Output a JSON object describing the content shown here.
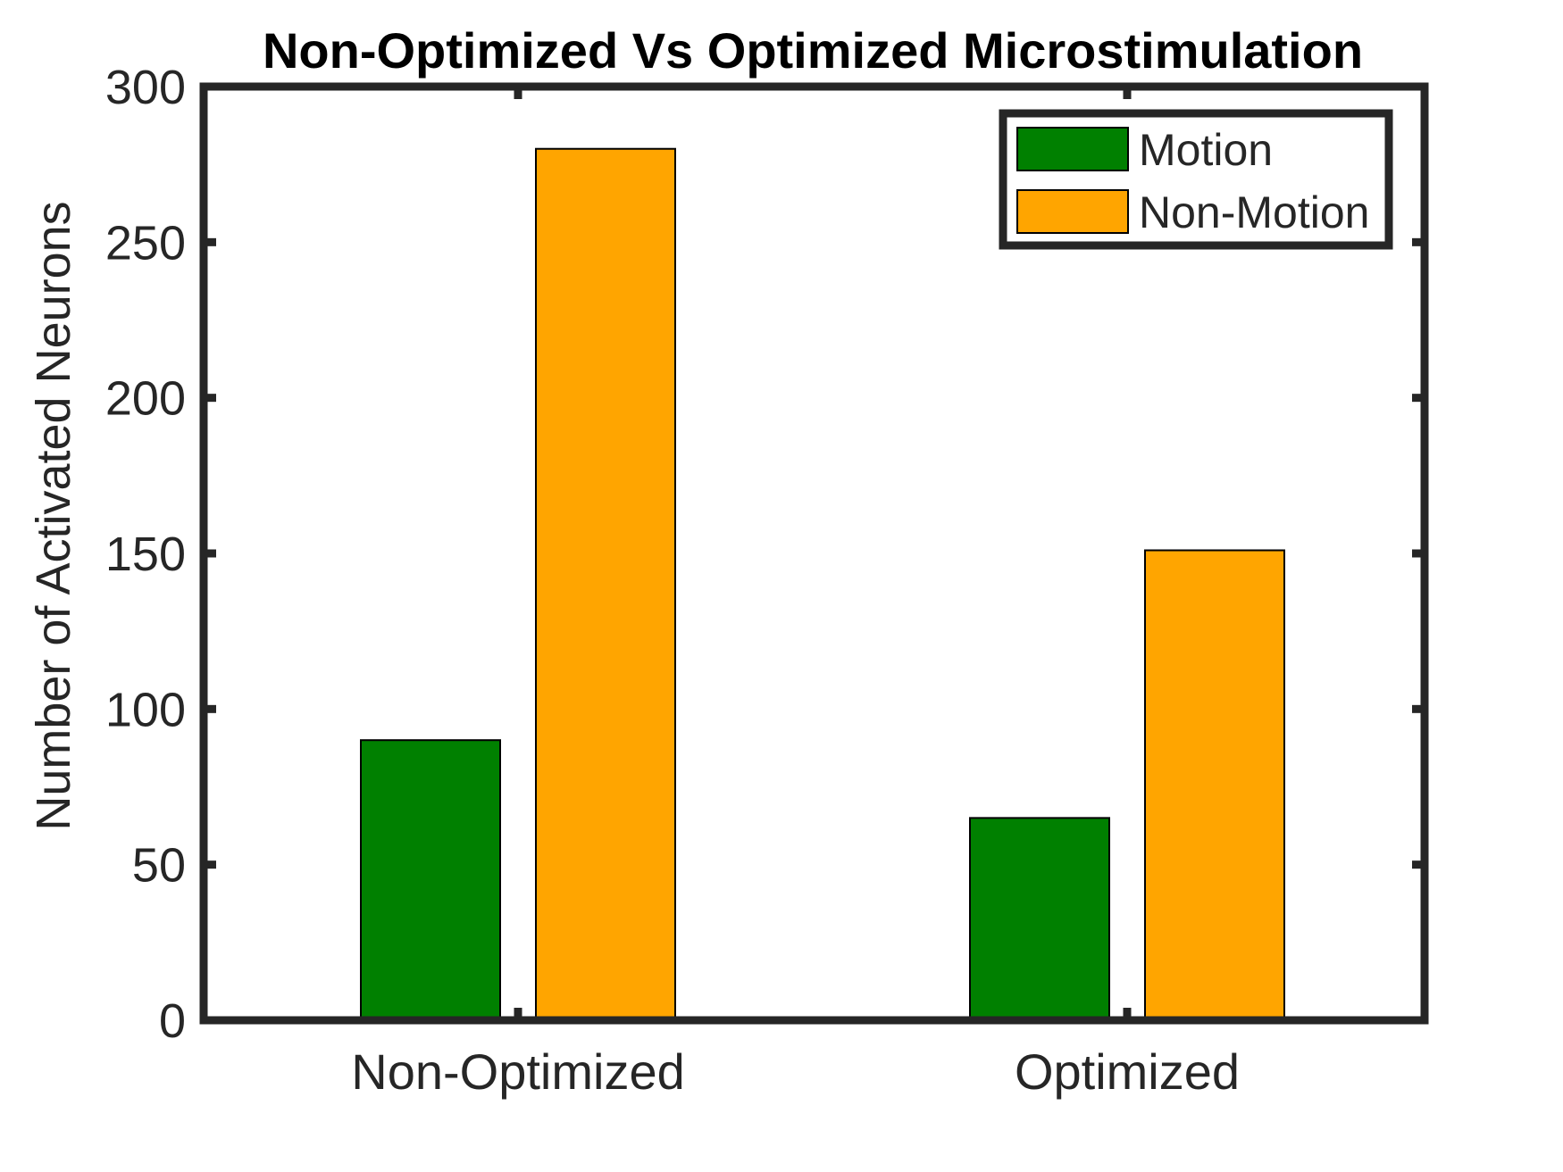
{
  "chart_data": {
    "type": "bar",
    "title": "Non-Optimized Vs Optimized Microstimulation",
    "xlabel": "",
    "ylabel": "Number of Activated Neurons",
    "categories": [
      "Non-Optimized",
      "Optimized"
    ],
    "series": [
      {
        "name": "Motion",
        "values": [
          90,
          65
        ],
        "color": "#008000"
      },
      {
        "name": "Non-Motion",
        "values": [
          280,
          151
        ],
        "color": "#FFA500"
      }
    ],
    "ylim": [
      0,
      300
    ],
    "yticks": [
      0,
      50,
      100,
      150,
      200,
      250,
      300
    ],
    "grid": false,
    "legend": "top-right"
  }
}
